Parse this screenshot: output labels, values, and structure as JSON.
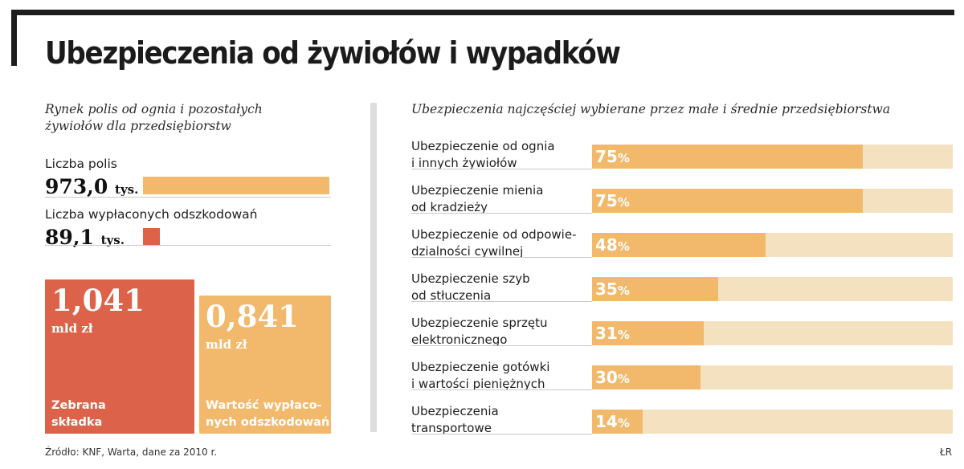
{
  "title": "Ubezpieczenia od żywiołów i wypadków",
  "left_panel": {
    "subtitle_line1": "Rynek polis od ognia i pozostałych",
    "subtitle_line2": "żywiołów dla przedsiębiorstw",
    "policies": {
      "label": "Liczba polis",
      "value": "973,0",
      "unit": "tys.",
      "number": 973.0
    },
    "claims": {
      "label": "Liczba wypłaconych odszkodowań",
      "value": "89,1",
      "unit": "tys.",
      "number": 89.1
    },
    "premium": {
      "value": "1,041",
      "unit": "mld zł",
      "label_line1": "Zebrana",
      "label_line2": "składka",
      "number": 1.041
    },
    "payout": {
      "value": "0,841",
      "unit": "mld zł",
      "label_line1": "Wartość wypłaco-",
      "label_line2": "nych odszkodowań",
      "number": 0.841
    }
  },
  "right_panel": {
    "subtitle": "Ubezpieczenia najczęściej wybierane przez małe i średnie przedsiębiorstwa"
  },
  "chart_data": {
    "type": "bar",
    "orientation": "horizontal",
    "categories": [
      [
        "Ubezpieczenie od ognia",
        "i innych żywiołów"
      ],
      [
        "Ubezpieczenie mienia",
        "od kradzieży"
      ],
      [
        "Ubezpieczenie od odpowie-",
        "dzialności cywilnej"
      ],
      [
        "Ubezpieczenie szyb",
        "od stłuczenia"
      ],
      [
        "Ubezpieczenie sprzętu",
        "elektronicznego"
      ],
      [
        "Ubezpieczenie gotówki",
        "i wartości pieniężnych"
      ],
      [
        "Ubezpieczenia",
        "transportowe"
      ]
    ],
    "values": [
      75,
      75,
      48,
      35,
      31,
      30,
      14
    ],
    "unit": "%",
    "xlim": [
      0,
      100
    ],
    "grid": false,
    "colors": {
      "fill": "#f2b96c",
      "track": "#f4e1bf"
    }
  },
  "footer": {
    "source": "Źródło: KNF, Warta, dane za 2010 r.",
    "author": "ŁR"
  },
  "colors": {
    "red": "#dc624a",
    "orange": "#f2b96c",
    "track": "#f4e1bf"
  }
}
